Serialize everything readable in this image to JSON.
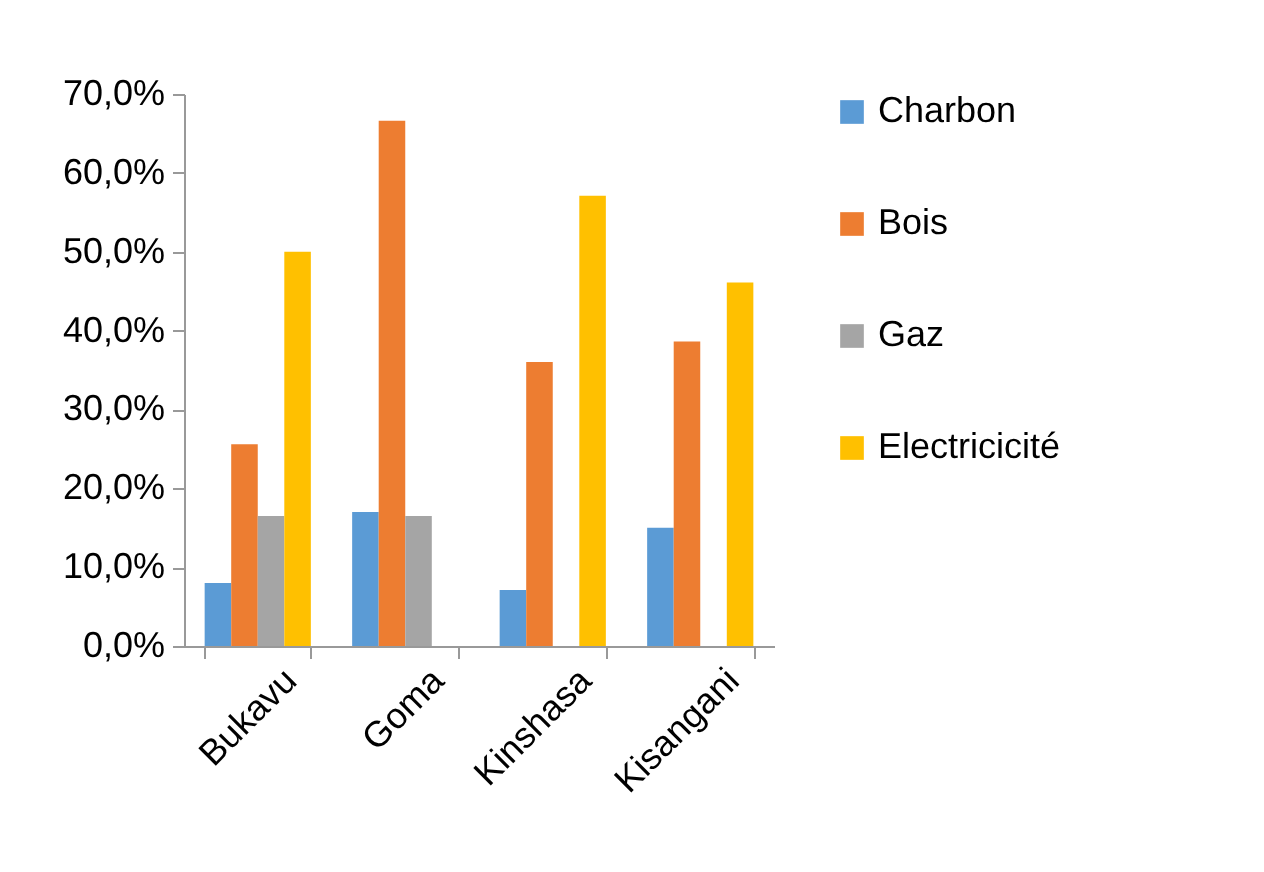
{
  "chart_data": {
    "type": "bar",
    "categories": [
      "Bukavu",
      "Goma",
      "Kinshasa",
      "Kisangani"
    ],
    "series": [
      {
        "name": "Charbon",
        "color": "#5b9bd5",
        "values": [
          8.0,
          17.0,
          7.1,
          15.0
        ]
      },
      {
        "name": "Bois",
        "color": "#ed7d31",
        "values": [
          25.6,
          66.6,
          36.0,
          38.6
        ]
      },
      {
        "name": "Gaz",
        "color": "#a5a5a5",
        "values": [
          16.5,
          16.5,
          null,
          null
        ]
      },
      {
        "name": "Electricicité",
        "color": "#ffc000",
        "values": [
          50.0,
          null,
          57.1,
          46.1
        ]
      }
    ],
    "ylim": [
      0,
      70
    ],
    "yticks": [
      {
        "value": 0,
        "label": "0,0%"
      },
      {
        "value": 10,
        "label": "10,0%"
      },
      {
        "value": 20,
        "label": "20,0%"
      },
      {
        "value": 30,
        "label": "30,0%"
      },
      {
        "value": 40,
        "label": "40,0%"
      },
      {
        "value": 50,
        "label": "50,0%"
      },
      {
        "value": 60,
        "label": "60,0%"
      },
      {
        "value": 70,
        "label": "70,0%"
      }
    ],
    "grid": false,
    "legend": "right"
  }
}
